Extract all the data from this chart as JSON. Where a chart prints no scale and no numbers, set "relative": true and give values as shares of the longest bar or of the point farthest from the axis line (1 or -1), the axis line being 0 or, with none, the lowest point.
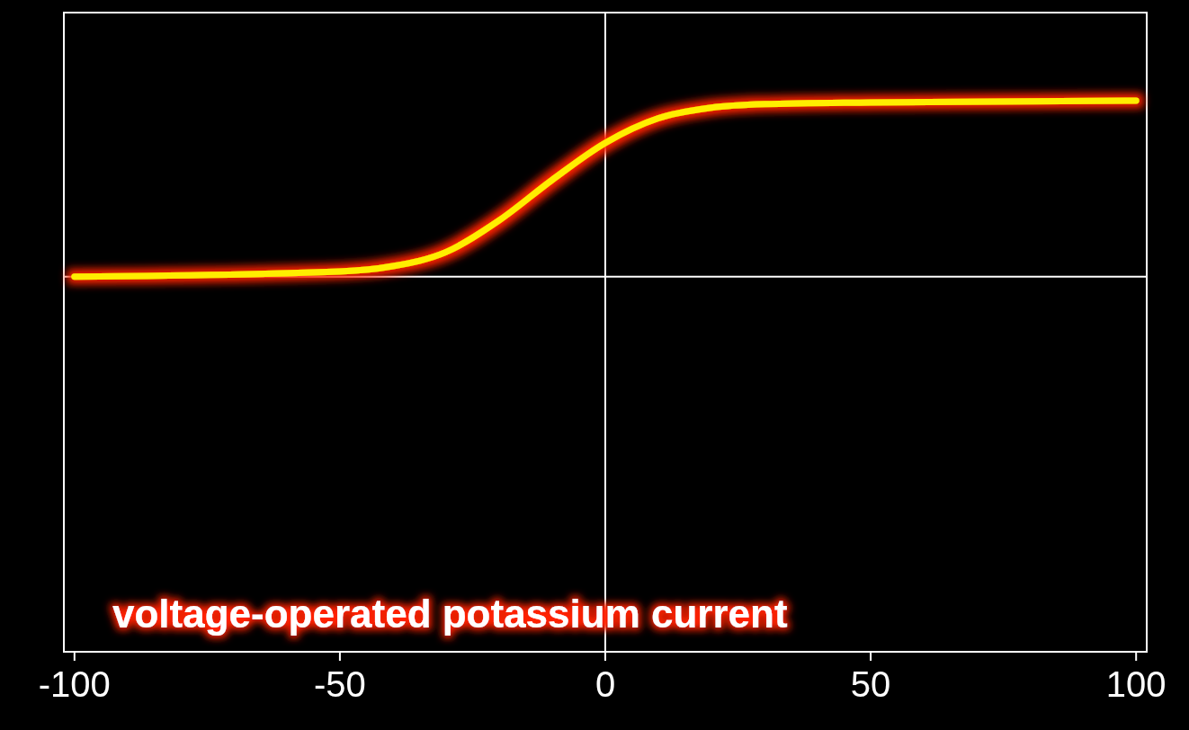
{
  "chart_data": {
    "type": "line",
    "relative": true,
    "x": [
      -100,
      -50,
      -40,
      -30,
      -20,
      -10,
      0,
      10,
      20,
      30,
      50,
      100
    ],
    "series": [
      {
        "color": "#ffee00",
        "values": [
          0,
          0.03,
          0.06,
          0.14,
          0.32,
          0.55,
          0.76,
          0.9,
          0.96,
          0.98,
          0.99,
          1
        ]
      }
    ],
    "xlim": [
      -102,
      102
    ],
    "xticks": [
      -100,
      -50,
      0,
      50,
      100
    ],
    "ref_lines": [
      {
        "axis": "x",
        "value": 0,
        "color": "#ffffff"
      }
    ],
    "annotations": [
      "voltage-operated potassium current"
    ],
    "marker": "none",
    "line_style": "solid",
    "grid": false
  }
}
